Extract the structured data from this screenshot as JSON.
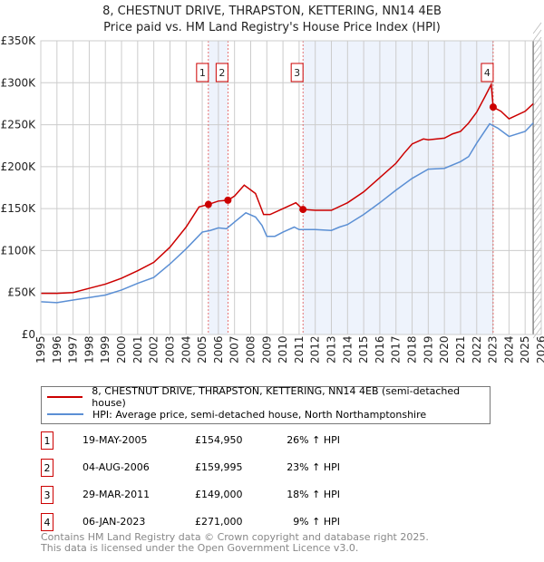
{
  "chart_data": {
    "type": "line",
    "title": "8, CHESTNUT DRIVE, THRAPSTON, KETTERING, NN14 4EB",
    "subtitle": "Price paid vs. HM Land Registry's House Price Index (HPI)",
    "xlim": [
      1995,
      2026
    ],
    "ylim": [
      0,
      350000
    ],
    "x_ticks": [
      "1995",
      "1996",
      "1997",
      "1998",
      "1999",
      "2000",
      "2001",
      "2002",
      "2003",
      "2004",
      "2005",
      "2006",
      "2007",
      "2008",
      "2009",
      "2010",
      "2011",
      "2012",
      "2013",
      "2014",
      "2015",
      "2016",
      "2017",
      "2018",
      "2019",
      "2020",
      "2021",
      "2022",
      "2023",
      "2024",
      "2025",
      "2026"
    ],
    "y_ticks": [
      {
        "v": 0,
        "label": "£0"
      },
      {
        "v": 50000,
        "label": "£50K"
      },
      {
        "v": 100000,
        "label": "£100K"
      },
      {
        "v": 150000,
        "label": "£150K"
      },
      {
        "v": 200000,
        "label": "£200K"
      },
      {
        "v": 250000,
        "label": "£250K"
      },
      {
        "v": 300000,
        "label": "£300K"
      },
      {
        "v": 350000,
        "label": "£350K"
      }
    ],
    "grid": true,
    "forecast_hatch_from": 2025.5,
    "series": [
      {
        "name": "8, CHESTNUT DRIVE, THRAPSTON, KETTERING, NN14 4EB (semi-detached house)",
        "color": "#cc0000",
        "points": [
          [
            1995,
            49000
          ],
          [
            1996,
            49000
          ],
          [
            1997,
            50000
          ],
          [
            1998,
            55000
          ],
          [
            1999,
            60000
          ],
          [
            2000,
            67000
          ],
          [
            2001,
            76000
          ],
          [
            2002,
            86000
          ],
          [
            2003,
            104000
          ],
          [
            2004,
            128000
          ],
          [
            2004.8,
            152000
          ],
          [
            2005.38,
            154950
          ],
          [
            2006,
            159000
          ],
          [
            2006.59,
            159995
          ],
          [
            2007,
            165000
          ],
          [
            2007.6,
            178000
          ],
          [
            2008.3,
            168000
          ],
          [
            2008.8,
            143000
          ],
          [
            2009.2,
            143000
          ],
          [
            2010,
            150000
          ],
          [
            2010.8,
            157000
          ],
          [
            2011.24,
            149000
          ],
          [
            2012,
            148000
          ],
          [
            2013,
            148000
          ],
          [
            2014,
            157000
          ],
          [
            2015,
            170000
          ],
          [
            2016,
            187000
          ],
          [
            2017,
            204000
          ],
          [
            2017.5,
            216000
          ],
          [
            2018,
            227000
          ],
          [
            2018.7,
            233000
          ],
          [
            2019,
            232000
          ],
          [
            2020,
            234000
          ],
          [
            2020.5,
            239000
          ],
          [
            2021,
            242000
          ],
          [
            2021.5,
            252000
          ],
          [
            2022,
            265000
          ],
          [
            2022.5,
            283000
          ],
          [
            2022.9,
            298000
          ],
          [
            2023.02,
            271000
          ],
          [
            2023.5,
            266000
          ],
          [
            2024,
            257000
          ],
          [
            2025,
            266000
          ],
          [
            2025.5,
            275000
          ]
        ]
      },
      {
        "name": "HPI: Average price, semi-detached house, North Northamptonshire",
        "color": "#5b8fd4",
        "points": [
          [
            1995,
            39000
          ],
          [
            1996,
            38000
          ],
          [
            1997,
            41000
          ],
          [
            1998,
            44000
          ],
          [
            1999,
            47000
          ],
          [
            2000,
            53000
          ],
          [
            2001,
            61000
          ],
          [
            2002,
            68000
          ],
          [
            2003,
            84000
          ],
          [
            2004,
            102000
          ],
          [
            2005,
            122000
          ],
          [
            2005.5,
            124000
          ],
          [
            2006,
            127000
          ],
          [
            2006.5,
            126000
          ],
          [
            2007,
            134000
          ],
          [
            2007.7,
            145000
          ],
          [
            2008.3,
            140000
          ],
          [
            2008.7,
            130000
          ],
          [
            2009,
            117000
          ],
          [
            2009.5,
            117000
          ],
          [
            2010,
            122000
          ],
          [
            2010.7,
            128000
          ],
          [
            2011,
            125000
          ],
          [
            2012,
            125000
          ],
          [
            2013,
            124000
          ],
          [
            2013.5,
            128000
          ],
          [
            2014,
            131000
          ],
          [
            2015,
            143000
          ],
          [
            2016,
            157000
          ],
          [
            2017,
            172000
          ],
          [
            2018,
            186000
          ],
          [
            2019,
            197000
          ],
          [
            2020,
            198000
          ],
          [
            2021,
            206000
          ],
          [
            2021.5,
            212000
          ],
          [
            2022,
            228000
          ],
          [
            2022.8,
            251000
          ],
          [
            2023.3,
            246000
          ],
          [
            2024,
            236000
          ],
          [
            2025,
            242000
          ],
          [
            2025.5,
            252000
          ]
        ]
      }
    ],
    "sales": [
      {
        "n": "1",
        "x": 2005.38,
        "price": 154950,
        "date": "19-MAY-2005",
        "price_label": "£154,950",
        "delta": "26% ↑ HPI"
      },
      {
        "n": "2",
        "x": 2006.59,
        "price": 159995,
        "date": "04-AUG-2006",
        "price_label": "£159,995",
        "delta": "23% ↑ HPI"
      },
      {
        "n": "3",
        "x": 2011.24,
        "price": 149000,
        "date": "29-MAR-2011",
        "price_label": "£149,000",
        "delta": "18% ↑ HPI"
      },
      {
        "n": "4",
        "x": 2023.02,
        "price": 271000,
        "date": "06-JAN-2023",
        "price_label": "£271,000",
        "delta": "9% ↑ HPI"
      }
    ]
  },
  "footer": {
    "line1": "Contains HM Land Registry data © Crown copyright and database right 2025.",
    "line2": "This data is licensed under the Open Government Licence v3.0."
  }
}
